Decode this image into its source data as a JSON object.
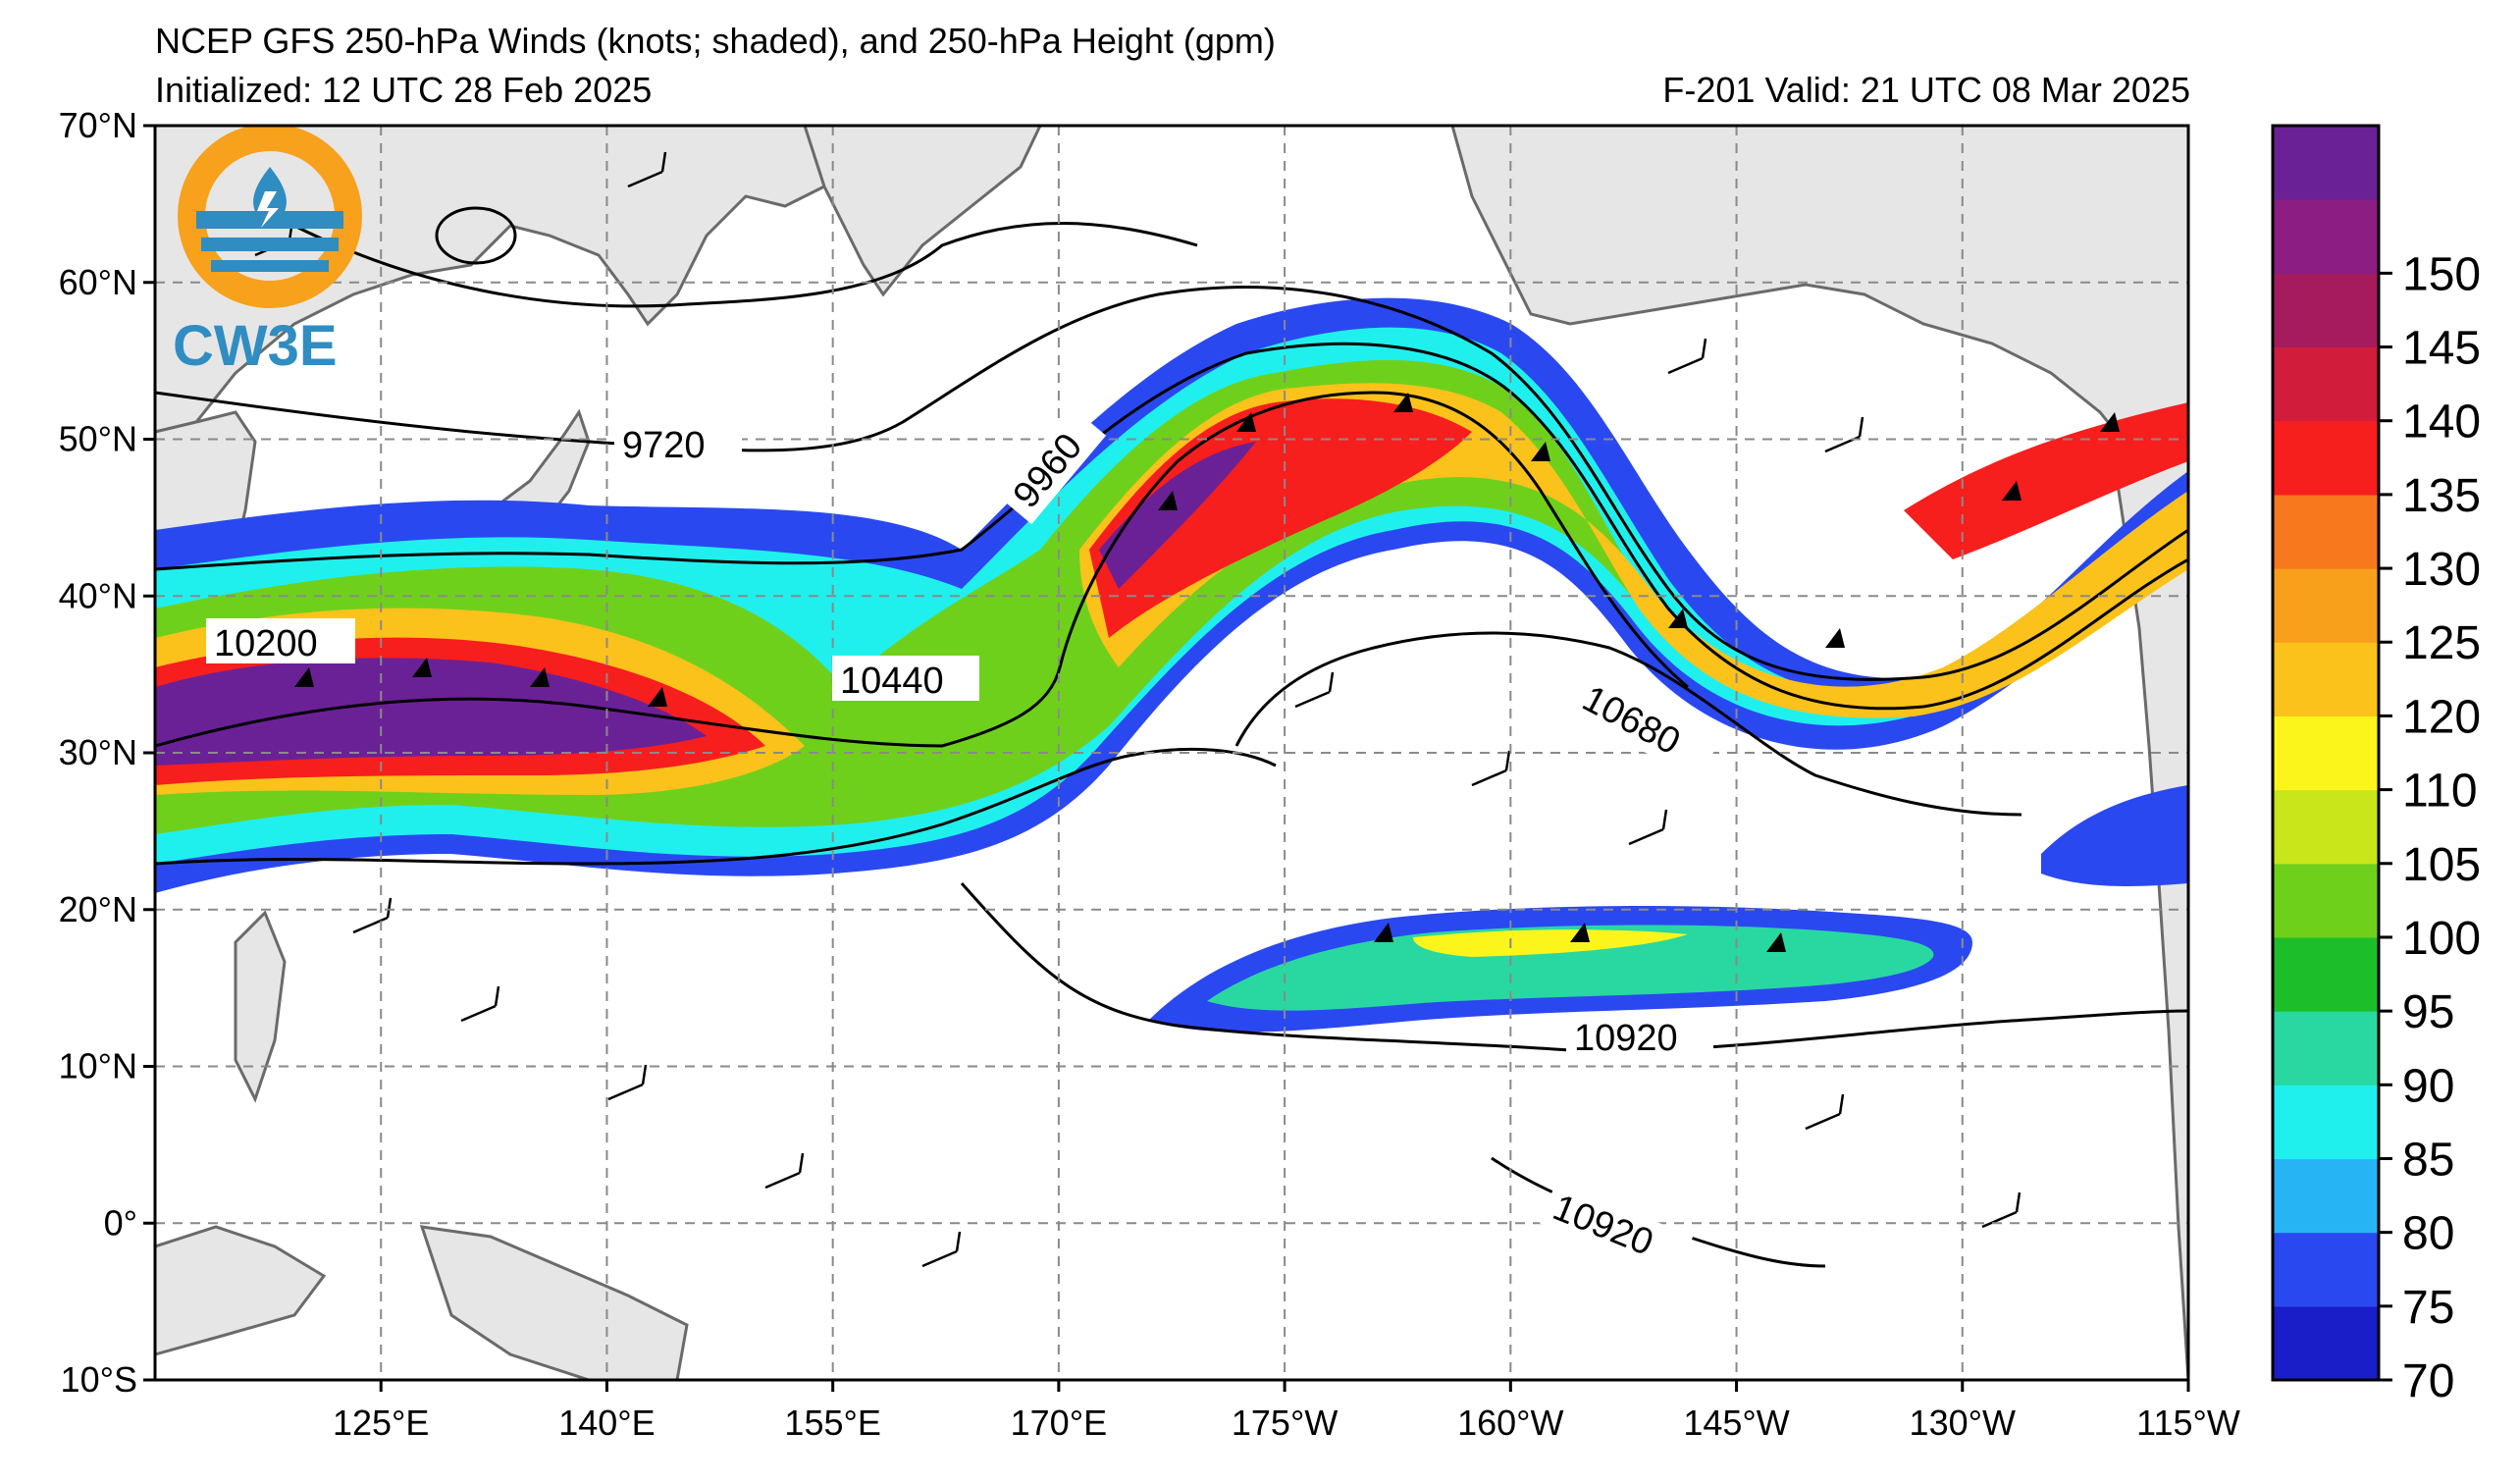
{
  "header": {
    "title": "NCEP GFS 250-hPa Winds (knots; shaded), and 250-hPa Height (gpm)",
    "initialized": "Initialized: 12 UTC 28 Feb 2025",
    "valid": "F-201  Valid: 21 UTC 08 Mar 2025"
  },
  "logo": {
    "text": "CW3E",
    "ring_color": "#f7a11c",
    "blue": "#2f8dc1"
  },
  "map": {
    "lat_labels": [
      "70°N",
      "60°N",
      "50°N",
      "40°N",
      "30°N",
      "20°N",
      "10°N",
      "0°",
      "10°S"
    ],
    "lon_labels": [
      "125°E",
      "140°E",
      "155°E",
      "170°E",
      "175°W",
      "160°W",
      "145°W",
      "130°W",
      "115°W"
    ],
    "lat_values": [
      70,
      60,
      50,
      40,
      30,
      20,
      10,
      0,
      -10
    ],
    "lon_values": [
      125,
      140,
      155,
      170,
      185,
      200,
      215,
      230,
      245
    ],
    "lon_range": [
      110,
      245
    ],
    "lat_range": [
      -10,
      70
    ],
    "land_color": "#e6e6e6",
    "coast_color": "#666666",
    "grid_color": "#8a8a8a"
  },
  "contours": {
    "labels": [
      "9720",
      "9960",
      "10200",
      "10440",
      "10680",
      "10920",
      "10920"
    ]
  },
  "colorbar": {
    "labels": [
      "70",
      "75",
      "80",
      "85",
      "90",
      "95",
      "100",
      "105",
      "110",
      "120",
      "125",
      "130",
      "135",
      "140",
      "145",
      "150"
    ],
    "colors": [
      "#1a1ec8",
      "#2a48f0",
      "#27b4f5",
      "#1ff0ee",
      "#29d8a0",
      "#1cbf2a",
      "#6fd01c",
      "#c8e61a",
      "#fbf51b",
      "#fbc21b",
      "#f8a01c",
      "#f7781d",
      "#f71e1e",
      "#d21c3b",
      "#a51b5d",
      "#8c1d82",
      "#6b2196"
    ]
  }
}
